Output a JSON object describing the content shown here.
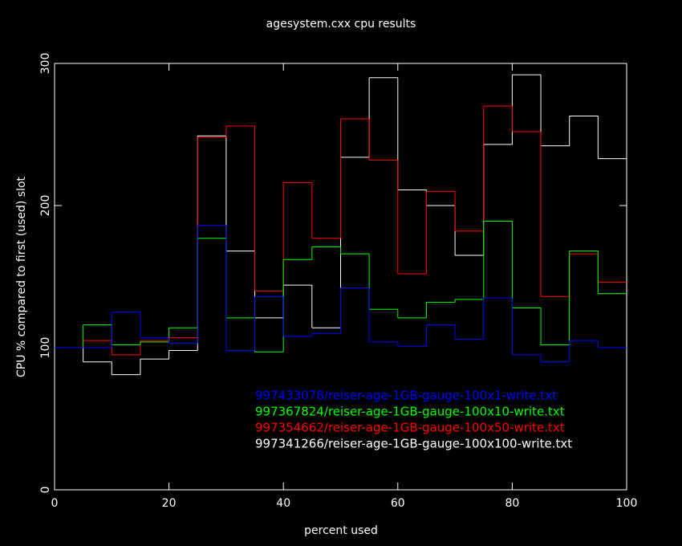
{
  "chart_data": {
    "type": "histogram",
    "title": "agesystem.cxx cpu results",
    "x_label": "percent used",
    "y_label": "CPU % compared to first (used) slot",
    "bins": [
      0,
      5,
      10,
      15,
      20,
      25,
      30,
      35,
      40,
      45,
      50,
      55,
      60,
      65,
      70,
      75,
      80,
      85,
      90,
      95,
      100
    ],
    "series": [
      {
        "name": "997433078/reiser-age-1GB-gauge-100x1-write.txt",
        "color": "#0000ff",
        "values": [
          100,
          100,
          125,
          107,
          103,
          186,
          98,
          136,
          108,
          110,
          142,
          104,
          101,
          116,
          106,
          135,
          95,
          90,
          105,
          100
        ]
      },
      {
        "name": "997367824/reiser-age-1GB-gauge-100x10-write.txt",
        "color": "#00ff00",
        "values": [
          100,
          116,
          102,
          104,
          114,
          177,
          121,
          97,
          162,
          171,
          166,
          127,
          121,
          132,
          134,
          189,
          128,
          102,
          168,
          138
        ]
      },
      {
        "name": "997354662/reiser-age-1GB-gauge-100x50-write.txt",
        "color": "#ff0000",
        "values": [
          100,
          105,
          95,
          105,
          107,
          248,
          256,
          140,
          216,
          177,
          261,
          232,
          152,
          210,
          182,
          270,
          252,
          136,
          166,
          146
        ]
      },
      {
        "name": "997341266/reiser-age-1GB-gauge-100x100-write.txt",
        "color": "#ffffff",
        "values": [
          100,
          90,
          81,
          92,
          98,
          249,
          168,
          121,
          144,
          114,
          234,
          290,
          211,
          200,
          165,
          243,
          292,
          242,
          263,
          233
        ]
      }
    ],
    "xlim": [
      0,
      100
    ],
    "xticks": [
      0,
      20,
      40,
      60,
      80,
      100
    ],
    "ylim": [
      0,
      300
    ],
    "yticks": [
      0,
      100,
      200,
      300
    ]
  }
}
